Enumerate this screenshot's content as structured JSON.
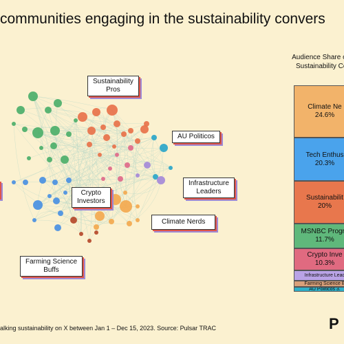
{
  "header": {
    "title": "communities engaging in the sustainability convers"
  },
  "chart_data": [
    {
      "type": "network",
      "communities": [
        {
          "name": "Sustainability Pros",
          "color": "#e8724a"
        },
        {
          "name": "AU Politicos",
          "color": "#2ba6c9"
        },
        {
          "name": "Infrastructure Leaders",
          "color": "#a58ad8"
        },
        {
          "name": "Crypto Investors",
          "color": "#e06a8a"
        },
        {
          "name": "Climate Nerds",
          "color": "#f3a94f"
        },
        {
          "name": "Farming Science Buffs",
          "color": "#b5492a"
        },
        {
          "name": "",
          "color": "#4a90e2"
        },
        {
          "name": "",
          "color": "#4caf6a"
        }
      ]
    },
    {
      "type": "bar",
      "stacked": true,
      "title": "Audience Share of V\nSustainability Con",
      "segments": [
        {
          "label": "Climate Ne",
          "value": 24.6,
          "display": "24.6%",
          "color": "#f2b36a"
        },
        {
          "label": "Tech Enthus",
          "value": 20.3,
          "display": "20.3%",
          "color": "#4aa3ec"
        },
        {
          "label": "Sustainabilit",
          "value": 20,
          "display": "20%",
          "color": "#e8774d"
        },
        {
          "label": "MSNBC Progre",
          "value": 11.7,
          "display": "11.7%",
          "color": "#5fb87b"
        },
        {
          "label": "Crypto Inve",
          "value": 10.3,
          "display": "10.3%",
          "color": "#e06a80"
        },
        {
          "label": "Infrastructure Lead",
          "value": 4.9,
          "display": "",
          "color": "#b9a3e6"
        },
        {
          "label": "Farming Science B",
          "value": 2.8,
          "display": "",
          "color": "#d9a07a"
        },
        {
          "label": "AU Politicos 3.",
          "value": 2.2,
          "display": "",
          "color": "#2fb0c8"
        }
      ]
    }
  ],
  "labels": {
    "sustainability_pros": "Sustainability\nPros",
    "au_politicos": "AU Politicos",
    "infrastructure_leaders": "Infrastructure\nLeaders",
    "crypto_investors": "Crypto\nInvestors",
    "climate_nerds": "Climate Nerds",
    "farming_science_buffs": "Farming Science\nBuffs"
  },
  "footer": {
    "source": "alking sustainability on X between Jan 1 – Dec 15, 2023. Source: Pulsar TRAC"
  },
  "logo": "P"
}
